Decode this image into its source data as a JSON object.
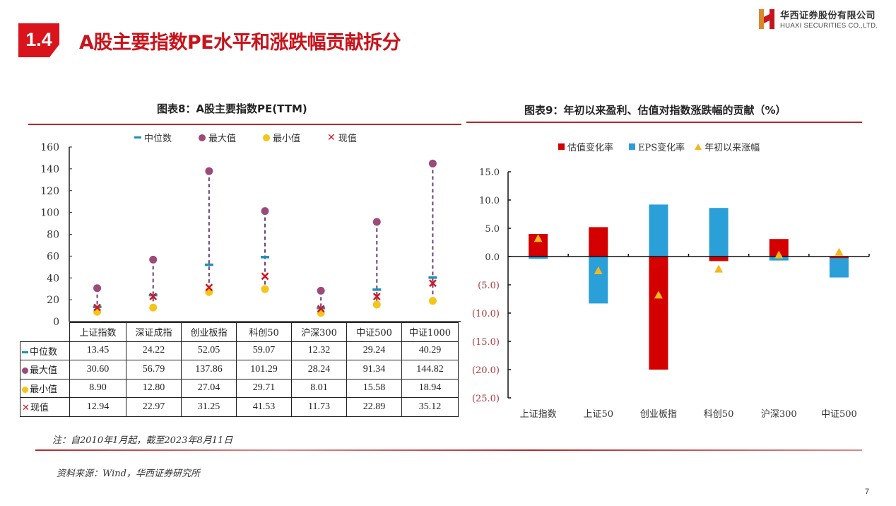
{
  "header": {
    "section_number": "1.4",
    "title": "A股主要指数PE水平和涨跌幅贡献拆分",
    "logo_cn": "华西证券股份有限公司",
    "logo_en": "HUAXI SECURITIES CO.,LTD."
  },
  "colors": {
    "brand_red": "#d9141c",
    "median": "#1f8fb8",
    "max": "#9b4a7a",
    "min": "#f5c518",
    "current": "#d9141c",
    "valuation": "#d40000",
    "eps": "#2a9fd8",
    "ytd": "#f5b81c",
    "range_line": "#6b3d7a"
  },
  "chart_data": [
    {
      "type": "scatter",
      "title": "图表8：A股主要指数PE(TTM)",
      "categories": [
        "上证指数",
        "深证成指",
        "创业板指",
        "科创50",
        "沪深300",
        "中证500",
        "中证1000"
      ],
      "ylim": [
        0,
        160
      ],
      "yticks": [
        "0",
        "20",
        "40",
        "60",
        "80",
        "100",
        "120",
        "140",
        "160"
      ],
      "legend": [
        "中位数",
        "最大值",
        "最小值",
        "现值"
      ],
      "legend_position": "top",
      "series": [
        {
          "name": "中位数",
          "marker": "dash",
          "values": [
            13.45,
            24.22,
            52.05,
            59.07,
            12.32,
            29.24,
            40.29
          ],
          "labels": [
            "13.45",
            "24.22",
            "52.05",
            "59.07",
            "12.32",
            "29.24",
            "40.29"
          ]
        },
        {
          "name": "最大值",
          "marker": "circle",
          "values": [
            30.6,
            56.79,
            137.86,
            101.29,
            28.24,
            91.34,
            144.82
          ],
          "labels": [
            "30.60",
            "56.79",
            "137.86",
            "101.29",
            "28.24",
            "91.34",
            "144.82"
          ]
        },
        {
          "name": "最小值",
          "marker": "circle",
          "values": [
            8.9,
            12.8,
            27.04,
            29.71,
            8.01,
            15.58,
            18.94
          ],
          "labels": [
            "8.90",
            "12.80",
            "27.04",
            "29.71",
            "8.01",
            "15.58",
            "18.94"
          ]
        },
        {
          "name": "现值",
          "marker": "x",
          "values": [
            12.94,
            22.97,
            31.25,
            41.53,
            11.73,
            22.89,
            35.12
          ],
          "labels": [
            "12.94",
            "22.97",
            "31.25",
            "41.53",
            "11.73",
            "22.89",
            "35.12"
          ]
        }
      ]
    },
    {
      "type": "bar",
      "title": "图表9：年初以来盈利、估值对指数涨跌幅的贡献（%）",
      "categories": [
        "上证指数",
        "上证50",
        "创业板指",
        "科创50",
        "沪深300",
        "中证500"
      ],
      "ylim": [
        -25,
        15
      ],
      "yticks": [
        "15.0",
        "10.0",
        "5.0",
        "0.0",
        "(5.0)",
        "(10.0)",
        "(15.0)",
        "(20.0)",
        "(25.0)"
      ],
      "ytick_values": [
        15,
        10,
        5,
        0,
        -5,
        -10,
        -15,
        -20,
        -25
      ],
      "legend": [
        "估值变化率",
        "EPS变化率",
        "年初以来涨幅"
      ],
      "legend_position": "top",
      "stacked": true,
      "series": [
        {
          "name": "估值变化率",
          "type": "bar",
          "values": [
            4.0,
            5.2,
            -20.0,
            -0.8,
            3.1,
            -0.3
          ]
        },
        {
          "name": "EPS变化率",
          "type": "bar",
          "values": [
            -0.4,
            -8.3,
            9.2,
            8.6,
            -0.7,
            -3.4
          ]
        },
        {
          "name": "年初以来涨幅",
          "type": "triangle",
          "values": [
            3.2,
            -2.5,
            -6.8,
            -2.2,
            0.3,
            0.8
          ]
        }
      ]
    }
  ],
  "table": {
    "row_labels": [
      "中位数",
      "最大值",
      "最小值",
      "现值"
    ]
  },
  "footer": {
    "note": "注：自2010年1月起，截至2023年8月11日",
    "source": "资料来源：Wind，华西证券研究所",
    "page_number": "7"
  }
}
